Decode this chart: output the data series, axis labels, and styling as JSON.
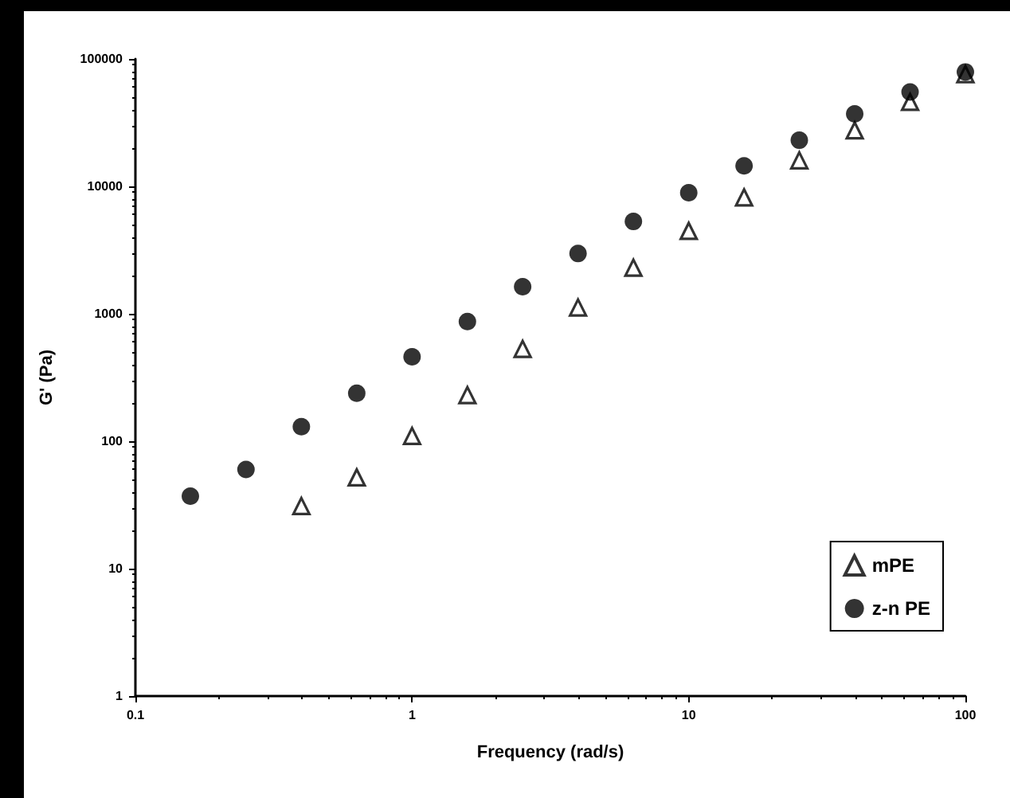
{
  "chart_data": {
    "type": "scatter",
    "xlabel": "Frequency (rad/s)",
    "ylabel": "G' (Pa)",
    "log": "xy",
    "xlim": [
      0.1,
      100
    ],
    "ylim": [
      1,
      100000
    ],
    "xticks": [
      0.1,
      1,
      10,
      100
    ],
    "yticks": [
      1,
      10,
      100,
      1000,
      10000,
      100000
    ],
    "grid": false,
    "legend": "bottom right",
    "series": [
      {
        "name": "mPE",
        "color": "#000000",
        "marker": "triangle",
        "x": [
          0.398,
          0.631,
          1,
          1.585,
          2.51,
          3.98,
          6.31,
          10,
          15.85,
          25.1,
          39.8,
          63.1,
          100
        ],
        "values": [
          31,
          52,
          110,
          230,
          530,
          1120,
          2300,
          4470,
          8200,
          16000,
          27500,
          46000,
          76000
        ]
      },
      {
        "name": "z-n PE",
        "color": "#000000",
        "marker": "circle",
        "x": [
          0.158,
          0.251,
          0.398,
          0.631,
          1,
          1.585,
          2.51,
          3.98,
          6.31,
          10,
          15.85,
          25.1,
          39.8,
          63.1,
          100
        ],
        "values": [
          37,
          60,
          130,
          238,
          460,
          870,
          1630,
          2970,
          5300,
          8900,
          14500,
          23000,
          37000,
          55000,
          79000
        ]
      }
    ]
  }
}
